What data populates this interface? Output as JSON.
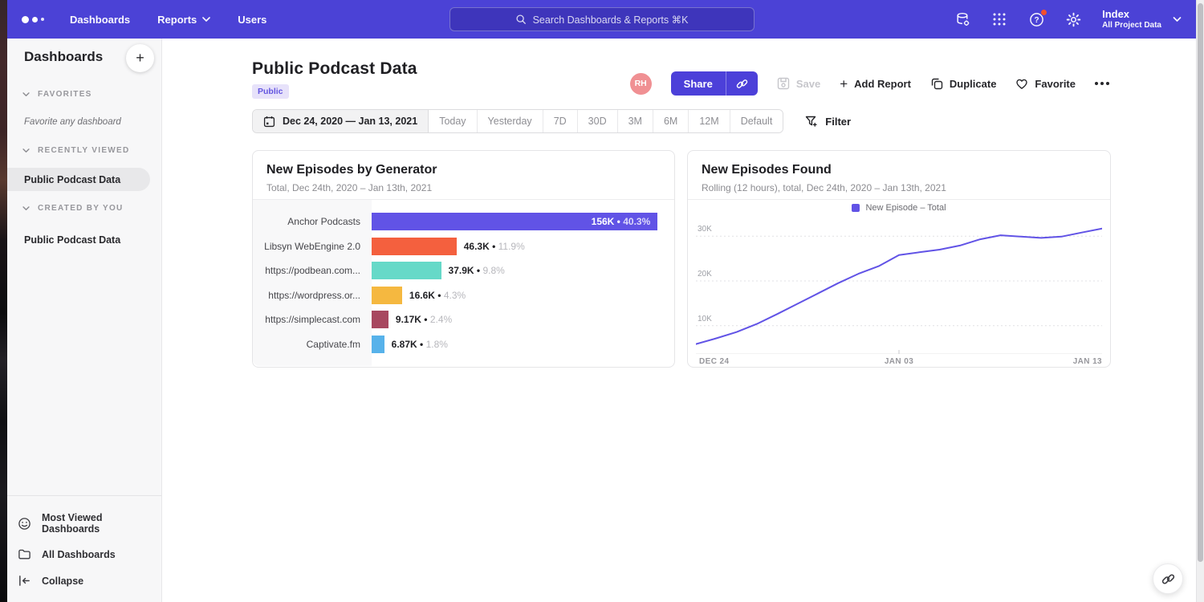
{
  "theme": {
    "nav_bg": "#4b42d6",
    "accent": "#6153e6",
    "badge_bg": "#e7e2fa",
    "avatar_bg": "#f09093",
    "notification_red": "#f4502c"
  },
  "nav": {
    "items": [
      "Dashboards",
      "Reports",
      "Users"
    ],
    "search_placeholder": "Search Dashboards & Reports ⌘K",
    "project_name": "Index",
    "project_scope": "All Project Data"
  },
  "sidebar": {
    "title": "Dashboards",
    "sections": [
      {
        "label": "FAVORITES",
        "empty_text": "Favorite any dashboard",
        "items": []
      },
      {
        "label": "RECENTLY VIEWED",
        "items": [
          {
            "label": "Public Podcast Data",
            "selected": true
          }
        ]
      },
      {
        "label": "CREATED BY YOU",
        "items": [
          {
            "label": "Public Podcast Data",
            "selected": false
          }
        ]
      }
    ],
    "footer_items": [
      {
        "label": "Most Viewed Dashboards",
        "icon": "smiley-icon"
      },
      {
        "label": "All Dashboards",
        "icon": "folder-icon"
      },
      {
        "label": "Collapse",
        "icon": "collapse-left-icon"
      }
    ]
  },
  "page": {
    "title": "Public Podcast Data",
    "badge": "Public"
  },
  "actions": {
    "avatar_initials": "RH",
    "share": "Share",
    "save": "Save",
    "add_report": "Add Report",
    "duplicate": "Duplicate",
    "favorite": "Favorite"
  },
  "toolbar": {
    "date_range": "Dec 24, 2020 — Jan 13, 2021",
    "presets": [
      "Today",
      "Yesterday",
      "7D",
      "30D",
      "3M",
      "6M",
      "12M",
      "Default"
    ],
    "filter": "Filter"
  },
  "chart_data": [
    {
      "type": "bar",
      "orientation": "horizontal",
      "title": "New Episodes by Generator",
      "subtitle": "Total, Dec 24th, 2020 – Jan 13th, 2021",
      "categories": [
        "Anchor Podcasts",
        "Libsyn WebEngine 2.0",
        "https://podbean.com...",
        "https://wordpress.or...",
        "https://simplecast.com",
        "Captivate.fm"
      ],
      "values": [
        156000,
        46300,
        37900,
        16600,
        9170,
        6870
      ],
      "value_labels": [
        "156K",
        "46.3K",
        "37.9K",
        "16.6K",
        "9.17K",
        "6.87K"
      ],
      "pct_labels": [
        "40.3%",
        "11.9%",
        "9.8%",
        "4.3%",
        "2.4%",
        "1.8%"
      ],
      "colors": [
        "#6153e6",
        "#f4603e",
        "#66d9c8",
        "#f5b840",
        "#a84860",
        "#57b2ea"
      ],
      "max_bar_fraction": 0.945
    },
    {
      "type": "line",
      "title": "New Episodes Found",
      "subtitle": "Rolling (12 hours), total, Dec 24th, 2020 – Jan 13th, 2021",
      "legend": [
        {
          "label": "New Episode – Total",
          "color": "#6153e6"
        }
      ],
      "x_ticks": [
        "DEC 24",
        "JAN 03",
        "JAN 13"
      ],
      "y_ticks": [
        {
          "label": "10K",
          "value": 10000
        },
        {
          "label": "20K",
          "value": 20000
        },
        {
          "label": "30K",
          "value": 30000
        }
      ],
      "ylim": [
        3700,
        33800
      ],
      "grid": "dashed-horizontal",
      "legend_position": "top-center",
      "values": [
        5900,
        7200,
        8600,
        10400,
        12600,
        14900,
        17200,
        19500,
        21600,
        23300,
        25800,
        26400,
        27000,
        27900,
        29300,
        30200,
        29900,
        29600,
        29900,
        30800,
        31700
      ],
      "line_color": "#6153e6"
    }
  ]
}
